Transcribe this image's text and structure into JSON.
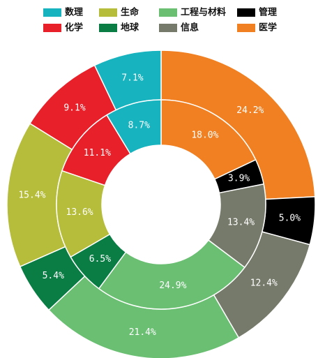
{
  "chart_data": {
    "type": "nested-donut",
    "categories": [
      "数理",
      "化学",
      "生命",
      "地球",
      "工程与材料",
      "信息",
      "管理",
      "医学"
    ],
    "colors": [
      "#17b3bf",
      "#e8202a",
      "#b5bd3a",
      "#0a7d45",
      "#6abf73",
      "#767a6a",
      "#000000",
      "#f08022"
    ],
    "rings": [
      {
        "values": [
          7.1,
          9.1,
          15.4,
          5.4,
          21.4,
          12.4,
          5.0,
          24.2
        ],
        "value_labels": [
          "7.1%",
          "9.1%",
          "15.4%",
          "5.4%",
          "21.4%",
          "12.4%",
          "5.0%",
          "24.2%"
        ]
      },
      {
        "values": [
          8.7,
          11.1,
          13.6,
          6.5,
          24.9,
          13.4,
          3.9,
          18.0
        ],
        "value_labels": [
          "8.7%",
          "11.1%",
          "13.6%",
          "6.5%",
          "24.9%",
          "13.4%",
          "3.9%",
          "18.0%"
        ]
      }
    ]
  }
}
